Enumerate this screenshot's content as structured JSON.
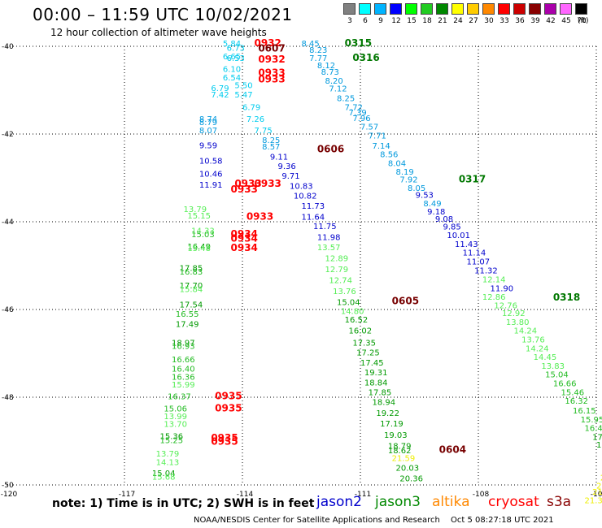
{
  "header": {
    "title": "00:00 – 11:59 UTC 10/02/2021",
    "subtitle": "12 hour collection of altimeter wave heights"
  },
  "legend": {
    "unit": "(ft)",
    "bins": [
      {
        "label": "3",
        "color": "#808080"
      },
      {
        "label": "6",
        "color": "#00ffff"
      },
      {
        "label": "9",
        "color": "#00b4ff"
      },
      {
        "label": "12",
        "color": "#0000ff"
      },
      {
        "label": "15",
        "color": "#00ff00"
      },
      {
        "label": "18",
        "color": "#22cc22"
      },
      {
        "label": "21",
        "color": "#008800"
      },
      {
        "label": "24",
        "color": "#ffff00"
      },
      {
        "label": "27",
        "color": "#ffcc00"
      },
      {
        "label": "30",
        "color": "#ff8800"
      },
      {
        "label": "33",
        "color": "#ff0000"
      },
      {
        "label": "36",
        "color": "#cc0000"
      },
      {
        "label": "39",
        "color": "#880000"
      },
      {
        "label": "42",
        "color": "#aa00aa"
      },
      {
        "label": "45",
        "color": "#ff66ff"
      },
      {
        "label": "70",
        "color": "#000000"
      }
    ]
  },
  "axes": {
    "lon_labels": [
      "-120",
      "-117",
      "-114",
      "-111",
      "-108",
      "-105"
    ],
    "lat_labels": [
      "-40",
      "-42",
      "-44",
      "-46",
      "-48",
      "-50"
    ]
  },
  "map_data": {
    "colors": {
      "c6": "#00ccee",
      "c9": "#0099dd",
      "c12": "#0000cc",
      "c15": "#55ee55",
      "c18": "#22bb22",
      "c21": "#009900",
      "c24": "#eeee00",
      "c33": "#ff0000",
      "c39": "#770000",
      "c18d": "#007700"
    },
    "labels": [
      {
        "t": "5.84",
        "lon": -114.5,
        "lat": -40.0,
        "c": "c6"
      },
      {
        "t": "6.73",
        "lon": -114.4,
        "lat": -40.1,
        "c": "c6"
      },
      {
        "t": "6.65",
        "lon": -114.5,
        "lat": -40.3,
        "c": "c6"
      },
      {
        "t": "6.53",
        "lon": -114.4,
        "lat": -40.33,
        "c": "c6"
      },
      {
        "t": "6.10",
        "lon": -114.5,
        "lat": -40.58,
        "c": "c6"
      },
      {
        "t": "6.54",
        "lon": -114.5,
        "lat": -40.78,
        "c": "c6"
      },
      {
        "t": "5.50",
        "lon": -114.2,
        "lat": -40.95,
        "c": "c6"
      },
      {
        "t": "6.79",
        "lon": -114.8,
        "lat": -41.02,
        "c": "c6"
      },
      {
        "t": "7.42",
        "lon": -114.8,
        "lat": -41.17,
        "c": "c6"
      },
      {
        "t": "5.47",
        "lon": -114.2,
        "lat": -41.17,
        "c": "c6"
      },
      {
        "t": "6.79",
        "lon": -114.0,
        "lat": -41.45,
        "c": "c6"
      },
      {
        "t": "7.26",
        "lon": -113.9,
        "lat": -41.72,
        "c": "c6"
      },
      {
        "t": "8.74",
        "lon": -115.1,
        "lat": -41.72,
        "c": "c9"
      },
      {
        "t": "8.79",
        "lon": -115.1,
        "lat": -41.8,
        "c": "c9"
      },
      {
        "t": "8.07",
        "lon": -115.1,
        "lat": -41.98,
        "c": "c9"
      },
      {
        "t": "7.75",
        "lon": -113.7,
        "lat": -41.98,
        "c": "c6"
      },
      {
        "t": "8.25",
        "lon": -113.5,
        "lat": -42.2,
        "c": "c9"
      },
      {
        "t": "8.57",
        "lon": -113.5,
        "lat": -42.35,
        "c": "c9"
      },
      {
        "t": "9.59",
        "lon": -115.1,
        "lat": -42.32,
        "c": "c12"
      },
      {
        "t": "9.11",
        "lon": -113.3,
        "lat": -42.58,
        "c": "c12"
      },
      {
        "t": "10.58",
        "lon": -115.1,
        "lat": -42.68,
        "c": "c12"
      },
      {
        "t": "9.36",
        "lon": -113.1,
        "lat": -42.8,
        "c": "c12"
      },
      {
        "t": "10.46",
        "lon": -115.1,
        "lat": -42.97,
        "c": "c12"
      },
      {
        "t": "9.71",
        "lon": -113.0,
        "lat": -43.02,
        "c": "c12"
      },
      {
        "t": "11.91",
        "lon": -115.1,
        "lat": -43.22,
        "c": "c12"
      },
      {
        "t": "10.83",
        "lon": -112.8,
        "lat": -43.25,
        "c": "c12"
      },
      {
        "t": "10.82",
        "lon": -112.7,
        "lat": -43.47,
        "c": "c12"
      },
      {
        "t": "11.73",
        "lon": -112.5,
        "lat": -43.7,
        "c": "c12"
      },
      {
        "t": "11.64",
        "lon": -112.5,
        "lat": -43.95,
        "c": "c12"
      },
      {
        "t": "11.75",
        "lon": -112.2,
        "lat": -44.17,
        "c": "c12"
      },
      {
        "t": "11.98",
        "lon": -112.1,
        "lat": -44.42,
        "c": "c12"
      },
      {
        "t": "13.79",
        "lon": -115.5,
        "lat": -43.78,
        "c": "c15"
      },
      {
        "t": "15.15",
        "lon": -115.4,
        "lat": -43.93,
        "c": "c15"
      },
      {
        "t": "14.33",
        "lon": -115.3,
        "lat": -44.27,
        "c": "c15"
      },
      {
        "t": "15.03",
        "lon": -115.3,
        "lat": -44.35,
        "c": "c18"
      },
      {
        "t": "16.49",
        "lon": -115.4,
        "lat": -44.63,
        "c": "c21"
      },
      {
        "t": "15.48",
        "lon": -115.4,
        "lat": -44.67,
        "c": "c15"
      },
      {
        "t": "13.57",
        "lon": -112.1,
        "lat": -44.65,
        "c": "c15"
      },
      {
        "t": "12.89",
        "lon": -111.9,
        "lat": -44.9,
        "c": "c15"
      },
      {
        "t": "12.79",
        "lon": -111.9,
        "lat": -45.15,
        "c": "c15"
      },
      {
        "t": "12.74",
        "lon": -111.8,
        "lat": -45.4,
        "c": "c15"
      },
      {
        "t": "13.76",
        "lon": -111.7,
        "lat": -45.65,
        "c": "c15"
      },
      {
        "t": "17.85",
        "lon": -115.6,
        "lat": -45.12,
        "c": "c21"
      },
      {
        "t": "16.83",
        "lon": -115.6,
        "lat": -45.2,
        "c": "c18"
      },
      {
        "t": "17.70",
        "lon": -115.6,
        "lat": -45.52,
        "c": "c21"
      },
      {
        "t": "15.84",
        "lon": -115.6,
        "lat": -45.6,
        "c": "c15"
      },
      {
        "t": "17.54",
        "lon": -115.6,
        "lat": -45.95,
        "c": "c21"
      },
      {
        "t": "15.04",
        "lon": -111.6,
        "lat": -45.9,
        "c": "c21"
      },
      {
        "t": "14.80",
        "lon": -111.5,
        "lat": -46.1,
        "c": "c15"
      },
      {
        "t": "16.55",
        "lon": -115.7,
        "lat": -46.17,
        "c": "c18"
      },
      {
        "t": "16.52",
        "lon": -111.4,
        "lat": -46.3,
        "c": "c21"
      },
      {
        "t": "17.49",
        "lon": -115.7,
        "lat": -46.4,
        "c": "c21"
      },
      {
        "t": "16.02",
        "lon": -111.3,
        "lat": -46.55,
        "c": "c21"
      },
      {
        "t": "18.97",
        "lon": -115.8,
        "lat": -46.82,
        "c": "c21"
      },
      {
        "t": "16.93",
        "lon": -115.8,
        "lat": -46.9,
        "c": "c18"
      },
      {
        "t": "17.35",
        "lon": -111.2,
        "lat": -46.82,
        "c": "c21"
      },
      {
        "t": "17.25",
        "lon": -111.1,
        "lat": -47.05,
        "c": "c21"
      },
      {
        "t": "16.66",
        "lon": -115.8,
        "lat": -47.2,
        "c": "c18"
      },
      {
        "t": "17.45",
        "lon": -111.0,
        "lat": -47.28,
        "c": "c21"
      },
      {
        "t": "16.40",
        "lon": -115.8,
        "lat": -47.42,
        "c": "c18"
      },
      {
        "t": "19.31",
        "lon": -110.9,
        "lat": -47.5,
        "c": "c21"
      },
      {
        "t": "16.36",
        "lon": -115.8,
        "lat": -47.6,
        "c": "c18"
      },
      {
        "t": "18.84",
        "lon": -110.9,
        "lat": -47.73,
        "c": "c21"
      },
      {
        "t": "15.99",
        "lon": -115.8,
        "lat": -47.78,
        "c": "c15"
      },
      {
        "t": "17.85",
        "lon": -110.8,
        "lat": -47.95,
        "c": "c21"
      },
      {
        "t": "16.37",
        "lon": -115.9,
        "lat": -48.05,
        "c": "c18"
      },
      {
        "t": "18.94",
        "lon": -110.7,
        "lat": -48.18,
        "c": "c21"
      },
      {
        "t": "15.06",
        "lon": -116.0,
        "lat": -48.32,
        "c": "c18"
      },
      {
        "t": "19.22",
        "lon": -110.6,
        "lat": -48.43,
        "c": "c21"
      },
      {
        "t": "13.99",
        "lon": -116.0,
        "lat": -48.5,
        "c": "c15"
      },
      {
        "t": "13.70",
        "lon": -116.0,
        "lat": -48.68,
        "c": "c15"
      },
      {
        "t": "17.19",
        "lon": -110.5,
        "lat": -48.67,
        "c": "c21"
      },
      {
        "t": "15.36",
        "lon": -116.1,
        "lat": -48.95,
        "c": "c21"
      },
      {
        "t": "15.25",
        "lon": -116.1,
        "lat": -49.05,
        "c": "c18"
      },
      {
        "t": "19.03",
        "lon": -110.4,
        "lat": -48.93,
        "c": "c21"
      },
      {
        "t": "18.79",
        "lon": -110.3,
        "lat": -49.18,
        "c": "c21"
      },
      {
        "t": "18.62",
        "lon": -110.3,
        "lat": -49.28,
        "c": "c21"
      },
      {
        "t": "21.59",
        "lon": -110.2,
        "lat": -49.45,
        "c": "c24"
      },
      {
        "t": "13.79",
        "lon": -116.2,
        "lat": -49.35,
        "c": "c15"
      },
      {
        "t": "14.13",
        "lon": -116.2,
        "lat": -49.55,
        "c": "c15"
      },
      {
        "t": "20.03",
        "lon": -110.1,
        "lat": -49.68,
        "c": "c21"
      },
      {
        "t": "15.04",
        "lon": -116.3,
        "lat": -49.8,
        "c": "c21"
      },
      {
        "t": "15.68",
        "lon": -116.3,
        "lat": -49.88,
        "c": "c15"
      },
      {
        "t": "20.36",
        "lon": -110.0,
        "lat": -49.92,
        "c": "c21"
      },
      {
        "t": "8.45",
        "lon": -112.5,
        "lat": -40.0,
        "c": "c9"
      },
      {
        "t": "8.23",
        "lon": -112.3,
        "lat": -40.15,
        "c": "c9"
      },
      {
        "t": "7.77",
        "lon": -112.3,
        "lat": -40.33,
        "c": "c9"
      },
      {
        "t": "8.12",
        "lon": -112.1,
        "lat": -40.5,
        "c": "c9"
      },
      {
        "t": "8.73",
        "lon": -112.0,
        "lat": -40.65,
        "c": "c9"
      },
      {
        "t": "8.20",
        "lon": -111.9,
        "lat": -40.85,
        "c": "c9"
      },
      {
        "t": "7.12",
        "lon": -111.8,
        "lat": -41.03,
        "c": "c9"
      },
      {
        "t": "8.25",
        "lon": -111.6,
        "lat": -41.25,
        "c": "c9"
      },
      {
        "t": "7.72",
        "lon": -111.4,
        "lat": -41.45,
        "c": "c9"
      },
      {
        "t": "7.39",
        "lon": -111.3,
        "lat": -41.57,
        "c": "c9"
      },
      {
        "t": "7.96",
        "lon": -111.2,
        "lat": -41.7,
        "c": "c9"
      },
      {
        "t": "7.57",
        "lon": -111.0,
        "lat": -41.9,
        "c": "c9"
      },
      {
        "t": "7.71",
        "lon": -110.8,
        "lat": -42.1,
        "c": "c9"
      },
      {
        "t": "7.14",
        "lon": -110.7,
        "lat": -42.33,
        "c": "c9"
      },
      {
        "t": "8.56",
        "lon": -110.5,
        "lat": -42.53,
        "c": "c9"
      },
      {
        "t": "8.04",
        "lon": -110.3,
        "lat": -42.73,
        "c": "c9"
      },
      {
        "t": "8.19",
        "lon": -110.1,
        "lat": -42.93,
        "c": "c9"
      },
      {
        "t": "7.92",
        "lon": -110.0,
        "lat": -43.1,
        "c": "c9"
      },
      {
        "t": "8.05",
        "lon": -109.8,
        "lat": -43.3,
        "c": "c9"
      },
      {
        "t": "9.53",
        "lon": -109.6,
        "lat": -43.45,
        "c": "c12"
      },
      {
        "t": "8.49",
        "lon": -109.4,
        "lat": -43.65,
        "c": "c9"
      },
      {
        "t": "9.18",
        "lon": -109.3,
        "lat": -43.83,
        "c": "c12"
      },
      {
        "t": "9.08",
        "lon": -109.1,
        "lat": -44.0,
        "c": "c12"
      },
      {
        "t": "9.85",
        "lon": -108.9,
        "lat": -44.18,
        "c": "c12"
      },
      {
        "t": "10.01",
        "lon": -108.8,
        "lat": -44.37,
        "c": "c12"
      },
      {
        "t": "11.43",
        "lon": -108.6,
        "lat": -44.57,
        "c": "c12"
      },
      {
        "t": "11.14",
        "lon": -108.4,
        "lat": -44.77,
        "c": "c12"
      },
      {
        "t": "11.07",
        "lon": -108.3,
        "lat": -44.97,
        "c": "c12"
      },
      {
        "t": "11.32",
        "lon": -108.1,
        "lat": -45.18,
        "c": "c12"
      },
      {
        "t": "12.14",
        "lon": -107.9,
        "lat": -45.38,
        "c": "c15"
      },
      {
        "t": "11.90",
        "lon": -107.7,
        "lat": -45.58,
        "c": "c12"
      },
      {
        "t": "12.86",
        "lon": -107.9,
        "lat": -45.78,
        "c": "c15"
      },
      {
        "t": "12.76",
        "lon": -107.6,
        "lat": -45.97,
        "c": "c15"
      },
      {
        "t": "12.92",
        "lon": -107.4,
        "lat": -46.15,
        "c": "c15"
      },
      {
        "t": "13.80",
        "lon": -107.3,
        "lat": -46.35,
        "c": "c15"
      },
      {
        "t": "14.24",
        "lon": -107.1,
        "lat": -46.55,
        "c": "c15"
      },
      {
        "t": "13.76",
        "lon": -106.9,
        "lat": -46.75,
        "c": "c15"
      },
      {
        "t": "14.24",
        "lon": -106.8,
        "lat": -46.95,
        "c": "c15"
      },
      {
        "t": "14.45",
        "lon": -106.6,
        "lat": -47.15,
        "c": "c15"
      },
      {
        "t": "13.83",
        "lon": -106.4,
        "lat": -47.35,
        "c": "c15"
      },
      {
        "t": "15.04",
        "lon": -106.3,
        "lat": -47.55,
        "c": "c18"
      },
      {
        "t": "16.66",
        "lon": -106.1,
        "lat": -47.75,
        "c": "c18"
      },
      {
        "t": "15.46",
        "lon": -105.9,
        "lat": -47.95,
        "c": "c18"
      },
      {
        "t": "16.32",
        "lon": -105.8,
        "lat": -48.15,
        "c": "c18"
      },
      {
        "t": "16.15",
        "lon": -105.6,
        "lat": -48.37,
        "c": "c18"
      },
      {
        "t": "15.95",
        "lon": -105.4,
        "lat": -48.57,
        "c": "c18"
      },
      {
        "t": "16.46",
        "lon": -105.3,
        "lat": -48.77,
        "c": "c18"
      },
      {
        "t": "17.22",
        "lon": -105.1,
        "lat": -48.97,
        "c": "c21"
      },
      {
        "t": "16.4",
        "lon": -105.0,
        "lat": -49.15,
        "c": "c21"
      },
      {
        "t": "16",
        "lon": -104.8,
        "lat": -49.35,
        "c": "c21"
      },
      {
        "t": "20.",
        "lon": -104.8,
        "lat": -49.73,
        "c": "c21"
      },
      {
        "t": "21.3",
        "lon": -104.9,
        "lat": -49.9,
        "c": "c24"
      },
      {
        "t": "21.0",
        "lon": -105.0,
        "lat": -50.08,
        "c": "c24"
      },
      {
        "t": "21.61",
        "lon": -105.1,
        "lat": -50.22,
        "c": "c24"
      },
      {
        "t": "21.32",
        "lon": -105.3,
        "lat": -50.42,
        "c": "c24"
      },
      {
        "t": "1",
        "lon": -104.8,
        "lat": -50.42,
        "c": "c21"
      }
    ],
    "times": [
      {
        "t": "0932",
        "lon": -113.7,
        "lat": -40.0,
        "c": "c33"
      },
      {
        "t": "0607",
        "lon": -113.6,
        "lat": -40.12,
        "c": "c39"
      },
      {
        "t": "0932",
        "lon": -113.6,
        "lat": -40.37,
        "c": "c33"
      },
      {
        "t": "0933",
        "lon": -113.6,
        "lat": -40.68,
        "c": "c33"
      },
      {
        "t": "0933",
        "lon": -113.6,
        "lat": -40.82,
        "c": "c33"
      },
      {
        "t": "0606",
        "lon": -112.1,
        "lat": -42.42,
        "c": "c39"
      },
      {
        "t": "0933",
        "lon": -114.2,
        "lat": -43.2,
        "c": "c33"
      },
      {
        "t": "0933",
        "lon": -113.7,
        "lat": -43.2,
        "c": "c33"
      },
      {
        "t": "0933",
        "lon": -114.3,
        "lat": -43.33,
        "c": "c33"
      },
      {
        "t": "0933",
        "lon": -113.9,
        "lat": -43.95,
        "c": "c33"
      },
      {
        "t": "0934",
        "lon": -114.3,
        "lat": -44.35,
        "c": "c33"
      },
      {
        "t": "0934",
        "lon": -114.3,
        "lat": -44.45,
        "c": "c33"
      },
      {
        "t": "0934",
        "lon": -114.3,
        "lat": -44.67,
        "c": "c33"
      },
      {
        "t": "0605",
        "lon": -110.2,
        "lat": -45.88,
        "c": "c39"
      },
      {
        "t": "0935",
        "lon": -114.7,
        "lat": -48.05,
        "c": "c33"
      },
      {
        "t": "0935",
        "lon": -114.7,
        "lat": -48.32,
        "c": "c33"
      },
      {
        "t": "0935",
        "lon": -114.8,
        "lat": -49.0,
        "c": "c33"
      },
      {
        "t": "0935",
        "lon": -114.8,
        "lat": -49.08,
        "c": "c33"
      },
      {
        "t": "0604",
        "lon": -109.0,
        "lat": -49.27,
        "c": "c39"
      },
      {
        "t": "0315",
        "lon": -111.4,
        "lat": -40.0,
        "c": "c18d"
      },
      {
        "t": "0316",
        "lon": -111.2,
        "lat": -40.33,
        "c": "c18d"
      },
      {
        "t": "0317",
        "lon": -108.5,
        "lat": -43.1,
        "c": "c18d"
      },
      {
        "t": "0318",
        "lon": -106.1,
        "lat": -45.8,
        "c": "c18d"
      }
    ]
  },
  "footer": {
    "note": "note:  1) Time is in UTC;  2) SWH is in feet",
    "satellites": [
      {
        "name": "jason2",
        "color": "#0000cc"
      },
      {
        "name": "jason3",
        "color": "#008800"
      },
      {
        "name": "altika",
        "color": "#ff8800"
      },
      {
        "name": "cryosat",
        "color": "#ff0000"
      },
      {
        "name": "s3a",
        "color": "#880000"
      }
    ],
    "credit": "NOAA/NESDIS Center for Satellite Applications and Research",
    "date": "Oct  5 08:27:18 UTC 2021"
  }
}
